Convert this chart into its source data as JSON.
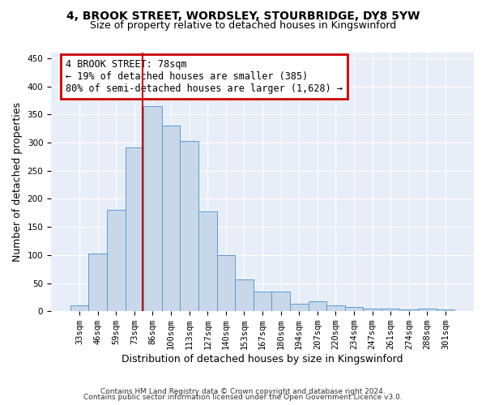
{
  "title1": "4, BROOK STREET, WORDSLEY, STOURBRIDGE, DY8 5YW",
  "title2": "Size of property relative to detached houses in Kingswinford",
  "xlabel": "Distribution of detached houses by size in Kingswinford",
  "ylabel": "Number of detached properties",
  "bar_color": "#c8d8e8",
  "bar_edge_color": "#5b9bd5",
  "background_color": "#e8eef8",
  "grid_color": "#ffffff",
  "categories": [
    "33sqm",
    "46sqm",
    "59sqm",
    "73sqm",
    "86sqm",
    "100sqm",
    "113sqm",
    "127sqm",
    "140sqm",
    "153sqm",
    "167sqm",
    "180sqm",
    "194sqm",
    "207sqm",
    "220sqm",
    "234sqm",
    "247sqm",
    "261sqm",
    "274sqm",
    "288sqm",
    "301sqm"
  ],
  "values": [
    10,
    103,
    180,
    291,
    365,
    331,
    303,
    177,
    100,
    57,
    35,
    35,
    13,
    17,
    10,
    7,
    5,
    5,
    3,
    4,
    3
  ],
  "vline_x_index": 3.47,
  "vline_color": "#cc0000",
  "annotation_line1": "4 BROOK STREET: 78sqm",
  "annotation_line2": "← 19% of detached houses are smaller (385)",
  "annotation_line3": "80% of semi-detached houses are larger (1,628) →",
  "annotation_box_color": "#cc0000",
  "ylim": [
    0,
    460
  ],
  "yticks": [
    0,
    50,
    100,
    150,
    200,
    250,
    300,
    350,
    400,
    450
  ],
  "footer_line1": "Contains HM Land Registry data © Crown copyright and database right 2024.",
  "footer_line2": "Contains public sector information licensed under the Open Government Licence v3.0.",
  "title1_fontsize": 10,
  "title2_fontsize": 9,
  "xlabel_fontsize": 9,
  "ylabel_fontsize": 9,
  "tick_fontsize": 7.5,
  "annotation_fontsize": 8.5,
  "footer_fontsize": 6.5
}
